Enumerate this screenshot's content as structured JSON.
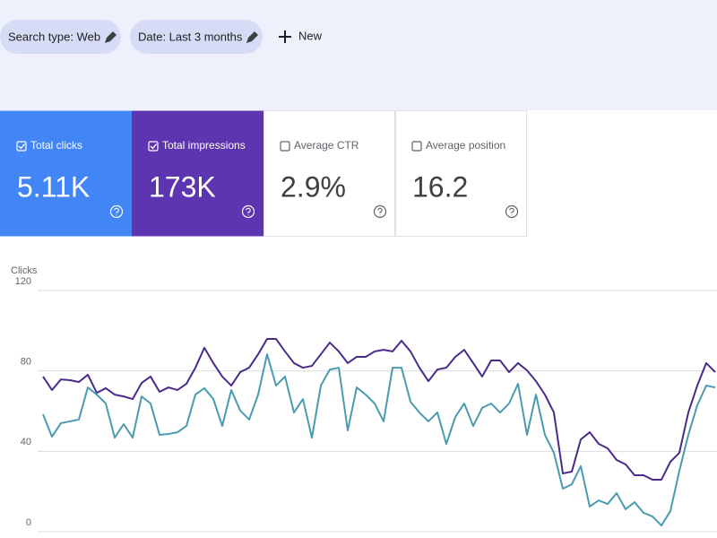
{
  "filters": [
    {
      "label": "Search type: Web"
    },
    {
      "label": "Date: Last 3 months"
    }
  ],
  "new_button": "New",
  "metrics": [
    {
      "label": "Total clicks",
      "value": "5.11K",
      "selected": true,
      "color": "#4285f4"
    },
    {
      "label": "Total impressions",
      "value": "173K",
      "selected": true,
      "color": "#5e35b1"
    },
    {
      "label": "Average CTR",
      "value": "2.9%",
      "selected": false
    },
    {
      "label": "Average position",
      "value": "16.2",
      "selected": false
    }
  ],
  "chart_data": {
    "type": "line",
    "y_label": "Clicks",
    "ylim": [
      0,
      120
    ],
    "yticks": [
      0,
      40,
      80,
      120
    ],
    "grid": true,
    "series": [
      {
        "color": "#4a2a8a",
        "values": [
          77.2,
          70.5,
          75.8,
          75.4,
          74.5,
          78.1,
          69.1,
          71.4,
          68.2,
          67.3,
          66.0,
          74.0,
          77.2,
          69.6,
          71.8,
          70.5,
          73.6,
          81.6,
          91.5,
          83.9,
          77.2,
          72.7,
          79.4,
          81.6,
          88.3,
          95.9,
          95.9,
          89.7,
          83.9,
          81.6,
          82.5,
          88.3,
          94.1,
          89.7,
          83.9,
          87.0,
          87.0,
          89.7,
          90.5,
          89.7,
          95.0,
          89.7,
          81.6,
          74.9,
          80.7,
          81.6,
          87.0,
          90.5,
          83.9,
          77.2,
          85.2,
          85.2,
          79.4,
          83.9,
          80.3,
          74.9,
          68.2,
          59.3,
          29.0,
          29.9,
          45.9,
          49.5,
          43.7,
          41.5,
          35.7,
          33.5,
          28.1,
          28.1,
          25.9,
          25.9,
          34.8,
          39.3,
          59.3,
          72.7,
          83.9,
          79.4
        ]
      },
      {
        "color": "#4a9bb0",
        "values": [
          58.4,
          47.3,
          54.0,
          54.9,
          55.8,
          71.8,
          68.2,
          63.8,
          46.8,
          53.5,
          46.8,
          67.3,
          63.8,
          48.2,
          48.6,
          49.5,
          52.6,
          68.2,
          71.4,
          66.0,
          52.6,
          70.5,
          60.3,
          55.8,
          68.2,
          88.3,
          72.7,
          77.2,
          59.3,
          66.0,
          46.8,
          72.7,
          80.7,
          81.6,
          50.4,
          71.8,
          68.2,
          63.8,
          54.9,
          81.6,
          81.6,
          64.7,
          59.3,
          54.9,
          59.3,
          43.7,
          57.1,
          63.8,
          52.6,
          61.6,
          63.8,
          59.3,
          63.8,
          73.6,
          48.2,
          68.2,
          48.2,
          39.3,
          21.4,
          23.6,
          32.6,
          12.5,
          15.6,
          13.8,
          19.2,
          11.2,
          14.7,
          9.4,
          7.6,
          3.1,
          10.3,
          30.3,
          48.2,
          62.9,
          72.7,
          71.8
        ]
      }
    ]
  }
}
